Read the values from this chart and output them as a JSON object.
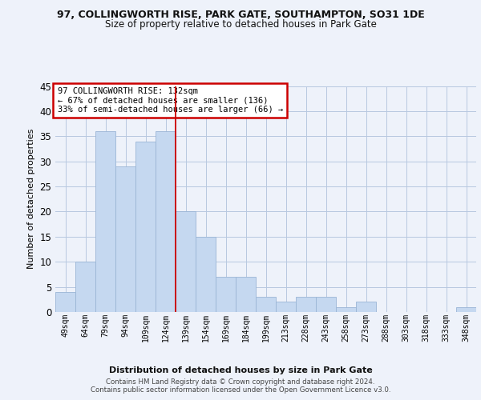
{
  "title1": "97, COLLINGWORTH RISE, PARK GATE, SOUTHAMPTON, SO31 1DE",
  "title2": "Size of property relative to detached houses in Park Gate",
  "xlabel": "Distribution of detached houses by size in Park Gate",
  "ylabel": "Number of detached properties",
  "categories": [
    "49sqm",
    "64sqm",
    "79sqm",
    "94sqm",
    "109sqm",
    "124sqm",
    "139sqm",
    "154sqm",
    "169sqm",
    "184sqm",
    "199sqm",
    "213sqm",
    "228sqm",
    "243sqm",
    "258sqm",
    "273sqm",
    "288sqm",
    "303sqm",
    "318sqm",
    "333sqm",
    "348sqm"
  ],
  "values": [
    4,
    10,
    36,
    29,
    34,
    36,
    20,
    15,
    7,
    7,
    3,
    2,
    3,
    3,
    1,
    2,
    0,
    0,
    0,
    0,
    1
  ],
  "bar_color": "#c5d8f0",
  "bar_edge_color": "#9ab5d5",
  "vline_x": 6,
  "vline_color": "#cc0000",
  "annotation_text": "97 COLLINGWORTH RISE: 132sqm\n← 67% of detached houses are smaller (136)\n33% of semi-detached houses are larger (66) →",
  "annotation_box_color": "#ffffff",
  "annotation_box_edge_color": "#cc0000",
  "ylim": [
    0,
    45
  ],
  "yticks": [
    0,
    5,
    10,
    15,
    20,
    25,
    30,
    35,
    40,
    45
  ],
  "footer_text": "Contains HM Land Registry data © Crown copyright and database right 2024.\nContains public sector information licensed under the Open Government Licence v3.0.",
  "bg_color": "#eef2fa"
}
